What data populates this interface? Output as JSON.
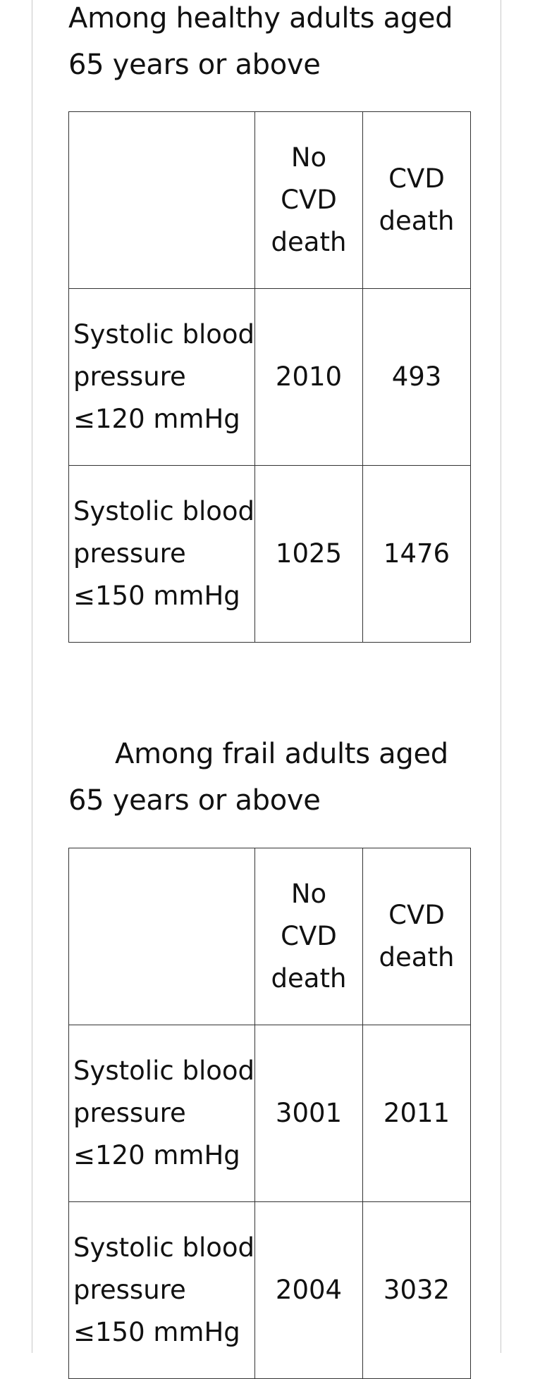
{
  "tables": [
    {
      "heading_line1": "Among healthy adults aged",
      "heading_line2": "65 years or above",
      "headers": {
        "corner": "",
        "col1": [
          "No",
          "CVD",
          "death"
        ],
        "col2": [
          "CVD",
          "death"
        ]
      },
      "rows": [
        {
          "label": [
            "Systolic blood",
            "pressure",
            "≤120 mmHg"
          ],
          "no_cvd_death": "2010",
          "cvd_death": "493"
        },
        {
          "label": [
            "Systolic blood",
            "pressure",
            "≤150 mmHg"
          ],
          "no_cvd_death": "1025",
          "cvd_death": "1476"
        }
      ]
    },
    {
      "heading_line1": "Among frail adults aged",
      "heading_line2": "65 years or above",
      "headers": {
        "corner": "",
        "col1": [
          "No",
          "CVD",
          "death"
        ],
        "col2": [
          "CVD",
          "death"
        ]
      },
      "rows": [
        {
          "label": [
            "Systolic blood",
            "pressure",
            "≤120 mmHg"
          ],
          "no_cvd_death": "3001",
          "cvd_death": "2011"
        },
        {
          "label": [
            "Systolic blood",
            "pressure",
            "≤150 mmHg"
          ],
          "no_cvd_death": "2004",
          "cvd_death": "3032"
        }
      ]
    }
  ]
}
